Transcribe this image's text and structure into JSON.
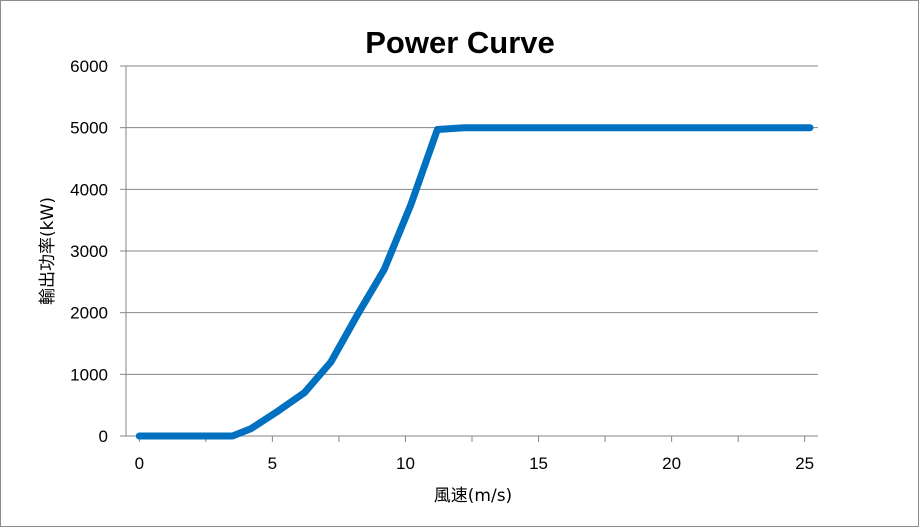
{
  "chart_data": {
    "type": "line",
    "title": "Power Curve",
    "xlabel": "風速(m/s)",
    "ylabel": "輸出功率(kW)",
    "xlim": [
      -0.5,
      25.5
    ],
    "ylim": [
      0,
      6000
    ],
    "xticks": [
      0,
      5,
      10,
      15,
      20,
      25
    ],
    "yticks": [
      0,
      1000,
      2000,
      3000,
      4000,
      5000,
      6000
    ],
    "grid": "horizontal",
    "legend": "none",
    "series": [
      {
        "color": "#0070c0",
        "x": [
          0,
          1,
          2,
          3,
          3.5,
          4.2,
          5.2,
          6.2,
          7.2,
          8.2,
          9.2,
          10.2,
          11.2,
          12.2,
          13.2,
          14.2,
          15.2,
          16.2,
          17.2,
          18.2,
          19.2,
          20.2,
          21.2,
          22.2,
          23.2,
          24.2,
          25.2
        ],
        "y": [
          0,
          0,
          0,
          0,
          0,
          120,
          400,
          700,
          1200,
          1970,
          2700,
          3750,
          4970,
          5000,
          5000,
          5000,
          5000,
          5000,
          5000,
          5000,
          5000,
          5000,
          5000,
          5000,
          5000,
          5000,
          5000
        ]
      }
    ]
  }
}
